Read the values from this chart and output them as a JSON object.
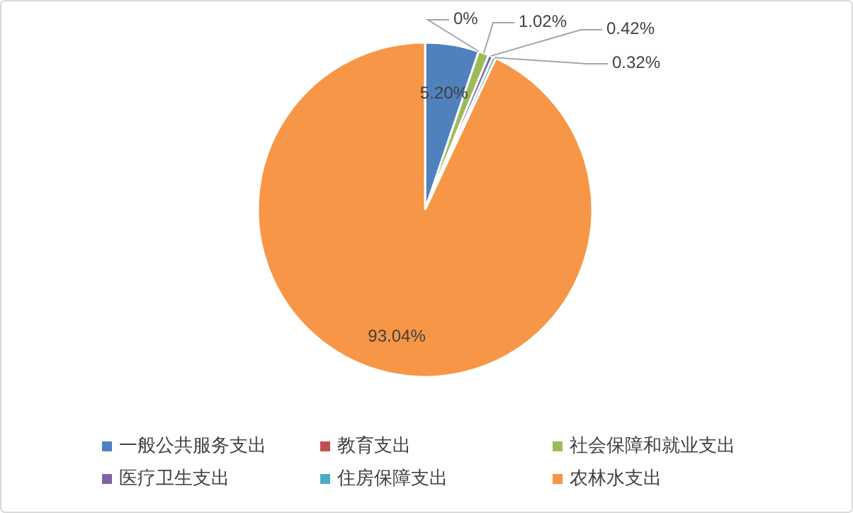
{
  "chart_data": {
    "type": "pie",
    "categories": [
      "一般公共服务支出",
      "教育支出",
      "社会保障和就业支出",
      "医疗卫生支出",
      "住房保障支出",
      "农林水支出"
    ],
    "values": [
      5.2,
      0,
      1.02,
      0.42,
      0.32,
      93.04
    ],
    "colors": [
      "#4f81bd",
      "#c0504d",
      "#9bbb59",
      "#8064a2",
      "#4bacc6",
      "#f79646"
    ],
    "value_labels": [
      "5.20%",
      "0%",
      "1.02%",
      "0.42%",
      "0.32%",
      "93.04%"
    ],
    "legend": "bottom"
  }
}
